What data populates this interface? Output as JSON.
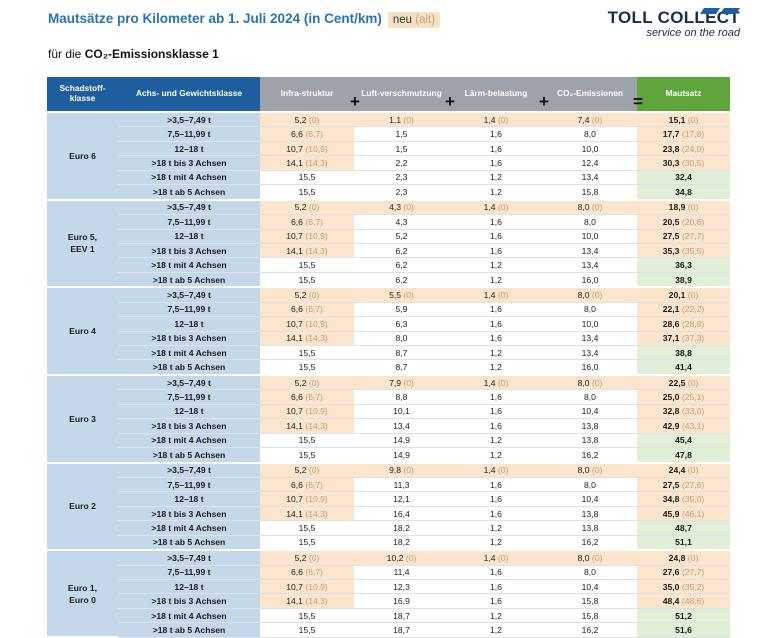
{
  "header": {
    "title": "Mautsätze pro Kilometer ab 1. Juli 2024 (in Cent/km)",
    "badge_new": "neu",
    "badge_old": "(alt)",
    "subtitle_prefix": "für die",
    "subtitle_class": "CO₂-Emissionsklasse 1"
  },
  "logo": {
    "name": "TOLL COLLECT",
    "tagline": "service on the road",
    "color": "#1d2c4a"
  },
  "colors": {
    "blue_header": "#1f5e9e",
    "gray_header": "#9ea3ab",
    "green_header": "#5fa53c",
    "light_blue_cell": "#c4d8ea",
    "changed_cell": "#fbe6cd",
    "new_total_cell": "#e0efd6"
  },
  "columns": [
    "Schadstoff-klasse",
    "Achs- und Gewichtsklasse",
    "Infra-struktur",
    "Luft-verschmutzung",
    "Lärm-belastung",
    "CO₂-Emissionen",
    "Mautsatz"
  ],
  "operators": [
    "+",
    "+",
    "+",
    "="
  ],
  "axle_classes": [
    ">3,5–7,49 t",
    "7,5–11,99 t",
    "12–18 t",
    ">18 t bis 3 Achsen",
    ">18 t mit 4 Achsen",
    ">18 t ab 5 Achsen"
  ],
  "groups": [
    {
      "name": "Euro 6",
      "rows": [
        {
          "infra": "5,2",
          "infra_old": "(0)",
          "air": "1,1",
          "air_old": "(0)",
          "noise": "1,4",
          "noise_old": "(0)",
          "co2": "7,4",
          "co2_old": "(0)",
          "total": "15,1",
          "total_old": "(0)"
        },
        {
          "infra": "6,6",
          "infra_old": "(6,7)",
          "air": "1,5",
          "air_old": "",
          "noise": "1,6",
          "noise_old": "",
          "co2": "8,0",
          "co2_old": "",
          "total": "17,7",
          "total_old": "(17,8)"
        },
        {
          "infra": "10,7",
          "infra_old": "(10,9)",
          "air": "1,5",
          "air_old": "",
          "noise": "1,6",
          "noise_old": "",
          "co2": "10,0",
          "co2_old": "",
          "total": "23,8",
          "total_old": "(24,0)"
        },
        {
          "infra": "14,1",
          "infra_old": "(14,3)",
          "air": "2,2",
          "air_old": "",
          "noise": "1,6",
          "noise_old": "",
          "co2": "12,4",
          "co2_old": "",
          "total": "30,3",
          "total_old": "(30,5)"
        },
        {
          "infra": "15,5",
          "infra_old": "",
          "air": "2,3",
          "air_old": "",
          "noise": "1,2",
          "noise_old": "",
          "co2": "13,4",
          "co2_old": "",
          "total": "32,4",
          "total_old": ""
        },
        {
          "infra": "15,5",
          "infra_old": "",
          "air": "2,3",
          "air_old": "",
          "noise": "1,2",
          "noise_old": "",
          "co2": "15,8",
          "co2_old": "",
          "total": "34,8",
          "total_old": ""
        }
      ]
    },
    {
      "name": "Euro 5,\nEEV 1",
      "rows": [
        {
          "infra": "5,2",
          "infra_old": "(0)",
          "air": "4,3",
          "air_old": "(0)",
          "noise": "1,4",
          "noise_old": "(0)",
          "co2": "8,0",
          "co2_old": "(0)",
          "total": "18,9",
          "total_old": "(0)"
        },
        {
          "infra": "6,6",
          "infra_old": "(6,7)",
          "air": "4,3",
          "air_old": "",
          "noise": "1,6",
          "noise_old": "",
          "co2": "8,0",
          "co2_old": "",
          "total": "20,5",
          "total_old": "(20,6)"
        },
        {
          "infra": "10,7",
          "infra_old": "(10,9)",
          "air": "5,2",
          "air_old": "",
          "noise": "1,6",
          "noise_old": "",
          "co2": "10,0",
          "co2_old": "",
          "total": "27,5",
          "total_old": "(27,7)"
        },
        {
          "infra": "14,1",
          "infra_old": "(14,3)",
          "air": "6,2",
          "air_old": "",
          "noise": "1,6",
          "noise_old": "",
          "co2": "13,4",
          "co2_old": "",
          "total": "35,3",
          "total_old": "(35,5)"
        },
        {
          "infra": "15,5",
          "infra_old": "",
          "air": "6,2",
          "air_old": "",
          "noise": "1,2",
          "noise_old": "",
          "co2": "13,4",
          "co2_old": "",
          "total": "36,3",
          "total_old": ""
        },
        {
          "infra": "15,5",
          "infra_old": "",
          "air": "6,2",
          "air_old": "",
          "noise": "1,2",
          "noise_old": "",
          "co2": "16,0",
          "co2_old": "",
          "total": "38,9",
          "total_old": ""
        }
      ]
    },
    {
      "name": "Euro 4",
      "rows": [
        {
          "infra": "5,2",
          "infra_old": "(0)",
          "air": "5,5",
          "air_old": "(0)",
          "noise": "1,4",
          "noise_old": "(0)",
          "co2": "8,0",
          "co2_old": "(0)",
          "total": "20,1",
          "total_old": "(0)"
        },
        {
          "infra": "6,6",
          "infra_old": "(6,7)",
          "air": "5,9",
          "air_old": "",
          "noise": "1,6",
          "noise_old": "",
          "co2": "8,0",
          "co2_old": "",
          "total": "22,1",
          "total_old": "(22,2)"
        },
        {
          "infra": "10,7",
          "infra_old": "(10,9)",
          "air": "6,3",
          "air_old": "",
          "noise": "1,6",
          "noise_old": "",
          "co2": "10,0",
          "co2_old": "",
          "total": "28,6",
          "total_old": "(28,8)"
        },
        {
          "infra": "14,1",
          "infra_old": "(14,3)",
          "air": "8,0",
          "air_old": "",
          "noise": "1,6",
          "noise_old": "",
          "co2": "13,4",
          "co2_old": "",
          "total": "37,1",
          "total_old": "(37,3)"
        },
        {
          "infra": "15,5",
          "infra_old": "",
          "air": "8,7",
          "air_old": "",
          "noise": "1,2",
          "noise_old": "",
          "co2": "13,4",
          "co2_old": "",
          "total": "38,8",
          "total_old": ""
        },
        {
          "infra": "15,5",
          "infra_old": "",
          "air": "8,7",
          "air_old": "",
          "noise": "1,2",
          "noise_old": "",
          "co2": "16,0",
          "co2_old": "",
          "total": "41,4",
          "total_old": ""
        }
      ]
    },
    {
      "name": "Euro 3",
      "rows": [
        {
          "infra": "5,2",
          "infra_old": "(0)",
          "air": "7,9",
          "air_old": "(0)",
          "noise": "1,4",
          "noise_old": "(0)",
          "co2": "8,0",
          "co2_old": "(0)",
          "total": "22,5",
          "total_old": "(0)"
        },
        {
          "infra": "6,6",
          "infra_old": "(6,7)",
          "air": "8,8",
          "air_old": "",
          "noise": "1,6",
          "noise_old": "",
          "co2": "8,0",
          "co2_old": "",
          "total": "25,0",
          "total_old": "(25,1)"
        },
        {
          "infra": "10,7",
          "infra_old": "(10,9)",
          "air": "10,1",
          "air_old": "",
          "noise": "1,6",
          "noise_old": "",
          "co2": "10,4",
          "co2_old": "",
          "total": "32,8",
          "total_old": "(33,0)"
        },
        {
          "infra": "14,1",
          "infra_old": "(14,3)",
          "air": "13,4",
          "air_old": "",
          "noise": "1,6",
          "noise_old": "",
          "co2": "13,8",
          "co2_old": "",
          "total": "42,9",
          "total_old": "(43,1)"
        },
        {
          "infra": "15,5",
          "infra_old": "",
          "air": "14,9",
          "air_old": "",
          "noise": "1,2",
          "noise_old": "",
          "co2": "13,8",
          "co2_old": "",
          "total": "45,4",
          "total_old": ""
        },
        {
          "infra": "15,5",
          "infra_old": "",
          "air": "14,9",
          "air_old": "",
          "noise": "1,2",
          "noise_old": "",
          "co2": "16,2",
          "co2_old": "",
          "total": "47,8",
          "total_old": ""
        }
      ]
    },
    {
      "name": "Euro 2",
      "rows": [
        {
          "infra": "5,2",
          "infra_old": "(0)",
          "air": "9,8",
          "air_old": "(0)",
          "noise": "1,4",
          "noise_old": "(0)",
          "co2": "8,0",
          "co2_old": "(0)",
          "total": "24,4",
          "total_old": "(0)"
        },
        {
          "infra": "6,6",
          "infra_old": "(6,7)",
          "air": "11,3",
          "air_old": "",
          "noise": "1,6",
          "noise_old": "",
          "co2": "8,0",
          "co2_old": "",
          "total": "27,5",
          "total_old": "(27,6)"
        },
        {
          "infra": "10,7",
          "infra_old": "(10,9)",
          "air": "12,1",
          "air_old": "",
          "noise": "1,6",
          "noise_old": "",
          "co2": "10,4",
          "co2_old": "",
          "total": "34,8",
          "total_old": "(35,0)"
        },
        {
          "infra": "14,1",
          "infra_old": "(14,3)",
          "air": "16,4",
          "air_old": "",
          "noise": "1,6",
          "noise_old": "",
          "co2": "13,8",
          "co2_old": "",
          "total": "45,9",
          "total_old": "(46,1)"
        },
        {
          "infra": "15,5",
          "infra_old": "",
          "air": "18,2",
          "air_old": "",
          "noise": "1,2",
          "noise_old": "",
          "co2": "13,8",
          "co2_old": "",
          "total": "48,7",
          "total_old": ""
        },
        {
          "infra": "15,5",
          "infra_old": "",
          "air": "18,2",
          "air_old": "",
          "noise": "1,2",
          "noise_old": "",
          "co2": "16,2",
          "co2_old": "",
          "total": "51,1",
          "total_old": ""
        }
      ]
    },
    {
      "name": "Euro 1,\nEuro 0",
      "rows": [
        {
          "infra": "5,2",
          "infra_old": "(0)",
          "air": "10,2",
          "air_old": "(0)",
          "noise": "1,4",
          "noise_old": "(0)",
          "co2": "8,0",
          "co2_old": "(0)",
          "total": "24,8",
          "total_old": "(0)"
        },
        {
          "infra": "6,6",
          "infra_old": "(6,7)",
          "air": "11,4",
          "air_old": "",
          "noise": "1,6",
          "noise_old": "",
          "co2": "8,0",
          "co2_old": "",
          "total": "27,6",
          "total_old": "(27,7)"
        },
        {
          "infra": "10,7",
          "infra_old": "(10,9)",
          "air": "12,3",
          "air_old": "",
          "noise": "1,6",
          "noise_old": "",
          "co2": "10,4",
          "co2_old": "",
          "total": "35,0",
          "total_old": "(35,2)"
        },
        {
          "infra": "14,1",
          "infra_old": "(14,3)",
          "air": "16,9",
          "air_old": "",
          "noise": "1,6",
          "noise_old": "",
          "co2": "15,8",
          "co2_old": "",
          "total": "48,4",
          "total_old": "(48,6)"
        },
        {
          "infra": "15,5",
          "infra_old": "",
          "air": "18,7",
          "air_old": "",
          "noise": "1,2",
          "noise_old": "",
          "co2": "15,8",
          "co2_old": "",
          "total": "51,2",
          "total_old": ""
        },
        {
          "infra": "15,5",
          "infra_old": "",
          "air": "18,7",
          "air_old": "",
          "noise": "1,2",
          "noise_old": "",
          "co2": "16,2",
          "co2_old": "",
          "total": "51,6",
          "total_old": ""
        }
      ]
    }
  ]
}
